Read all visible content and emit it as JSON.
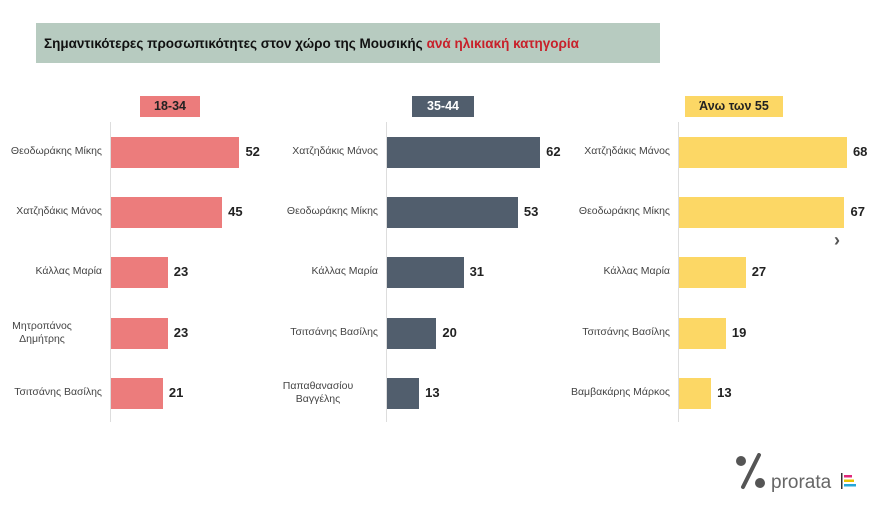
{
  "chart_data": [
    {
      "type": "bar",
      "orientation": "horizontal",
      "title": "18-34",
      "color": "#ec7c7c",
      "categories": [
        "Θεοδωράκης Μίκης",
        "Χατζηδάκις Μάνος",
        "Κάλλας Μαρία",
        "Μητροπάνος Δημήτρης",
        "Τσιτσάνης Βασίλης"
      ],
      "values": [
        52,
        45,
        23,
        23,
        21
      ]
    },
    {
      "type": "bar",
      "orientation": "horizontal",
      "title": "35-44",
      "color": "#515e6d",
      "categories": [
        "Χατζηδάκις Μάνος",
        "Θεοδωράκης Μίκης",
        "Κάλλας Μαρία",
        "Τσιτσάνης Βασίλης",
        "Παπαθανασίου Βαγγέλης"
      ],
      "values": [
        62,
        53,
        31,
        20,
        13
      ]
    },
    {
      "type": "bar",
      "orientation": "horizontal",
      "title": "Άνω των 55",
      "color": "#fcd765",
      "categories": [
        "Χατζηδάκις Μάνος",
        "Θεοδωράκης Μίκης",
        "Κάλλας Μαρία",
        "Τσιτσάνης Βασίλης",
        "Βαμβακάρης Μάρκος"
      ],
      "values": [
        68,
        67,
        27,
        19,
        13
      ]
    }
  ],
  "header": {
    "title_main": "Σημαντικότερες προσωπικότητες  στον χώρο της Μουσικής",
    "title_accent": "ανά ηλικιακή κατηγορία"
  },
  "logo": {
    "text": "prorata"
  },
  "icons": {
    "next": "chevron-right-icon"
  }
}
